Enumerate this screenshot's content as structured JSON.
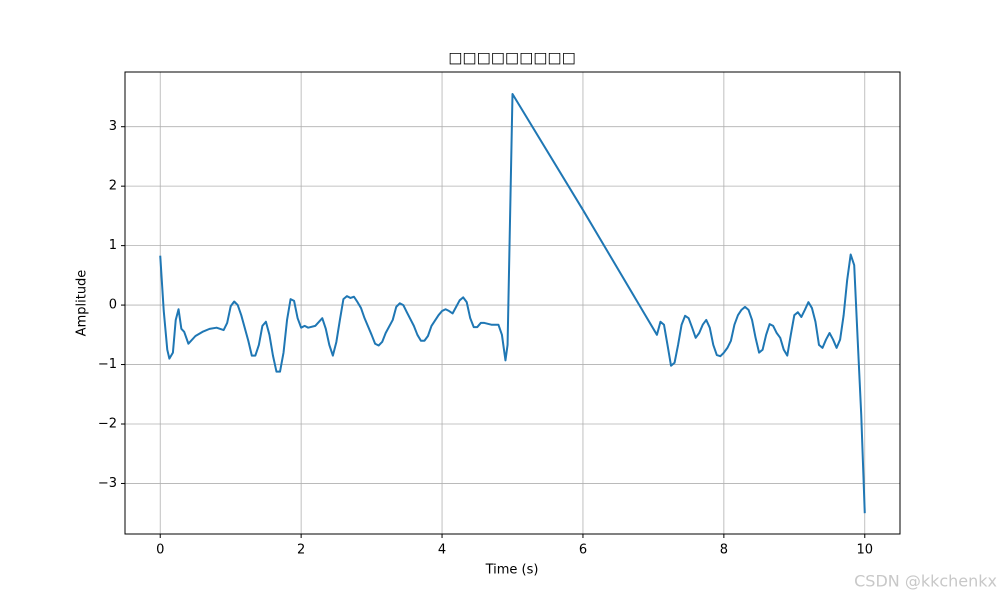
{
  "chart_data": {
    "type": "line",
    "title": "□□□□□□□□□",
    "xlabel": "Time (s)",
    "ylabel": "Amplitude",
    "xlim": [
      -0.5,
      10.5
    ],
    "ylim": [
      -3.85,
      3.92
    ],
    "xticks": [
      0,
      2,
      4,
      6,
      8,
      10
    ],
    "yticks": [
      {
        "value": -3,
        "label": "−3"
      },
      {
        "value": -2,
        "label": "−2"
      },
      {
        "value": -1,
        "label": "−1"
      },
      0,
      1,
      2,
      3
    ],
    "grid": true,
    "series": [
      {
        "color": "#1f77b4",
        "x": [
          0,
          0.05,
          0.1,
          0.13,
          0.18,
          0.22,
          0.26,
          0.3,
          0.34,
          0.4,
          0.5,
          0.6,
          0.7,
          0.8,
          0.9,
          0.95,
          1.0,
          1.05,
          1.1,
          1.15,
          1.25,
          1.3,
          1.35,
          1.4,
          1.45,
          1.5,
          1.55,
          1.6,
          1.65,
          1.7,
          1.75,
          1.8,
          1.85,
          1.9,
          1.95,
          2.0,
          2.05,
          2.1,
          2.2,
          2.3,
          2.35,
          2.4,
          2.45,
          2.5,
          2.55,
          2.6,
          2.65,
          2.7,
          2.75,
          2.8,
          2.85,
          2.9,
          3.0,
          3.05,
          3.1,
          3.15,
          3.2,
          3.3,
          3.35,
          3.4,
          3.45,
          3.5,
          3.6,
          3.65,
          3.7,
          3.75,
          3.8,
          3.85,
          3.95,
          4.0,
          4.05,
          4.1,
          4.15,
          4.2,
          4.25,
          4.3,
          4.35,
          4.4,
          4.45,
          4.5,
          4.55,
          4.6,
          4.7,
          4.8,
          4.85,
          4.9,
          4.93,
          5.0,
          6.0,
          7.05,
          7.1,
          7.15,
          7.2,
          7.25,
          7.3,
          7.35,
          7.4,
          7.45,
          7.5,
          7.55,
          7.6,
          7.65,
          7.7,
          7.75,
          7.8,
          7.85,
          7.9,
          7.95,
          8.0,
          8.05,
          8.1,
          8.15,
          8.2,
          8.25,
          8.3,
          8.35,
          8.4,
          8.45,
          8.5,
          8.55,
          8.6,
          8.65,
          8.7,
          8.75,
          8.8,
          8.85,
          8.9,
          8.95,
          9.0,
          9.05,
          9.1,
          9.15,
          9.2,
          9.25,
          9.3,
          9.35,
          9.4,
          9.45,
          9.5,
          9.55,
          9.6,
          9.65,
          9.7,
          9.75,
          9.8,
          9.85,
          9.9,
          9.95,
          10.0
        ],
        "values": [
          0.83,
          -0.1,
          -0.75,
          -0.9,
          -0.8,
          -0.25,
          -0.07,
          -0.4,
          -0.45,
          -0.65,
          -0.52,
          -0.45,
          -0.4,
          -0.38,
          -0.42,
          -0.3,
          -0.02,
          0.06,
          0.0,
          -0.17,
          -0.6,
          -0.85,
          -0.85,
          -0.67,
          -0.35,
          -0.28,
          -0.5,
          -0.85,
          -1.12,
          -1.12,
          -0.8,
          -0.25,
          0.1,
          0.07,
          -0.22,
          -0.38,
          -0.35,
          -0.38,
          -0.35,
          -0.22,
          -0.4,
          -0.67,
          -0.85,
          -0.62,
          -0.25,
          0.1,
          0.15,
          0.12,
          0.14,
          0.05,
          -0.05,
          -0.22,
          -0.5,
          -0.65,
          -0.68,
          -0.62,
          -0.47,
          -0.25,
          -0.03,
          0.03,
          0.0,
          -0.12,
          -0.35,
          -0.5,
          -0.6,
          -0.6,
          -0.52,
          -0.35,
          -0.17,
          -0.1,
          -0.07,
          -0.1,
          -0.14,
          -0.03,
          0.08,
          0.13,
          0.05,
          -0.22,
          -0.37,
          -0.37,
          -0.3,
          -0.3,
          -0.33,
          -0.33,
          -0.5,
          -0.93,
          -0.67,
          3.55,
          1.6,
          -0.5,
          -0.28,
          -0.33,
          -0.67,
          -1.02,
          -0.97,
          -0.67,
          -0.33,
          -0.18,
          -0.22,
          -0.38,
          -0.55,
          -0.47,
          -0.33,
          -0.25,
          -0.38,
          -0.67,
          -0.84,
          -0.86,
          -0.8,
          -0.72,
          -0.6,
          -0.33,
          -0.17,
          -0.08,
          -0.03,
          -0.08,
          -0.25,
          -0.55,
          -0.8,
          -0.75,
          -0.5,
          -0.32,
          -0.35,
          -0.47,
          -0.55,
          -0.75,
          -0.85,
          -0.5,
          -0.17,
          -0.12,
          -0.2,
          -0.08,
          0.05,
          -0.05,
          -0.28,
          -0.67,
          -0.72,
          -0.58,
          -0.47,
          -0.58,
          -0.72,
          -0.58,
          -0.17,
          0.42,
          0.85,
          0.67,
          -0.6,
          -1.85,
          -3.5
        ]
      }
    ]
  },
  "watermark": "CSDN @kkchenkx"
}
